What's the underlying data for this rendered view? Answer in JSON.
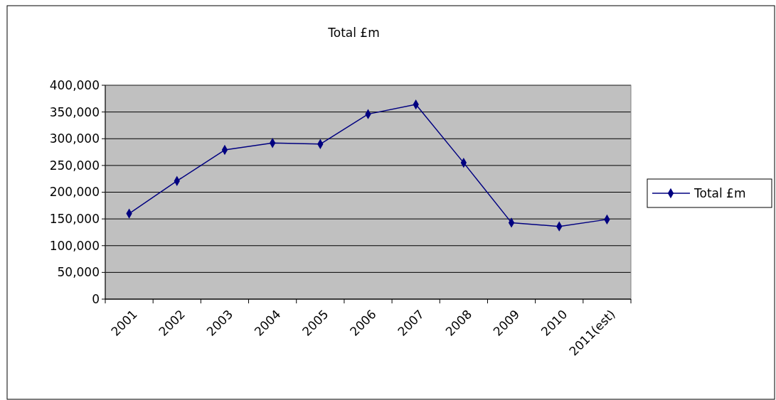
{
  "chart_data": {
    "type": "line",
    "title": "Total £m",
    "categories": [
      "2001",
      "2002",
      "2003",
      "2004",
      "2005",
      "2006",
      "2007",
      "2008",
      "2009",
      "2010",
      "2011(est)"
    ],
    "series": [
      {
        "name": "Total £m",
        "color": "#000080",
        "values": [
          160000,
          221000,
          279000,
          292000,
          290000,
          346000,
          364000,
          255000,
          143000,
          136000,
          149000
        ]
      }
    ],
    "ylim": [
      0,
      400000
    ],
    "yticks": [
      {
        "value": 0,
        "label": "0"
      },
      {
        "value": 50000,
        "label": "50,000"
      },
      {
        "value": 100000,
        "label": "100,000"
      },
      {
        "value": 150000,
        "label": "150,000"
      },
      {
        "value": 200000,
        "label": "200,000"
      },
      {
        "value": 250000,
        "label": "250,000"
      },
      {
        "value": 300000,
        "label": "300,000"
      },
      {
        "value": 350000,
        "label": "350,000"
      },
      {
        "value": 400000,
        "label": "400,000"
      }
    ],
    "grid": "y",
    "legend": "right",
    "marker": "diamond",
    "line_style": "solid"
  }
}
